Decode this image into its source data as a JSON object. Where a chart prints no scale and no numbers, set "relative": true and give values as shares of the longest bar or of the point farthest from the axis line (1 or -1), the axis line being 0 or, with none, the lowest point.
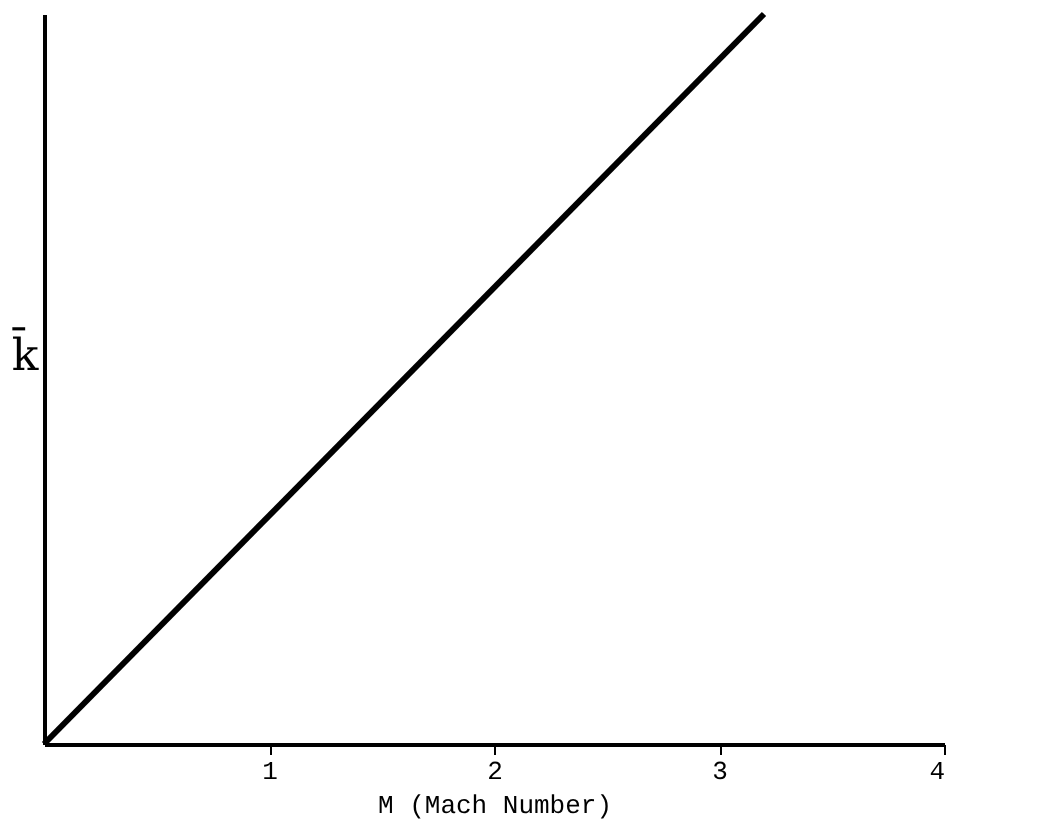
{
  "chart_data": {
    "type": "line",
    "xlabel": "M    (Mach Number)",
    "ylabel": "k̄",
    "relative": true,
    "x": [
      0,
      3.2
    ],
    "series": [
      {
        "color": "#000000",
        "values": [
          0,
          1
        ]
      }
    ],
    "xlim": [
      0,
      4
    ],
    "xticks": [
      1,
      2,
      3,
      4
    ],
    "grid": false,
    "legend": false,
    "marker": "none",
    "line_style": "solid"
  }
}
